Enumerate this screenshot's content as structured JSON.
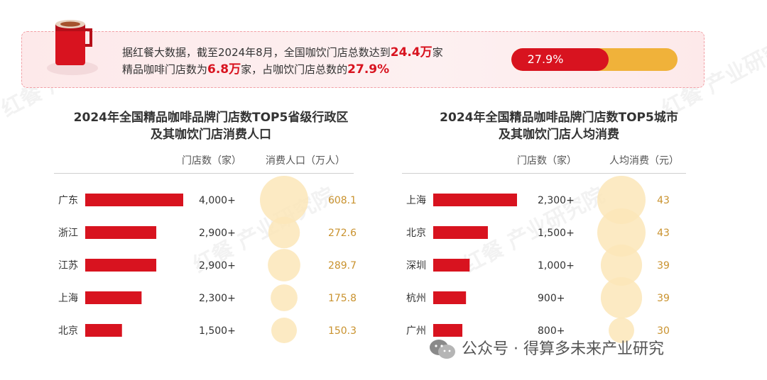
{
  "banner": {
    "line1_pre": "据红餐大数据，截至2024年8月，全国咖饮门店总数达到",
    "line1_hl": "24.4万",
    "line1_post": "家",
    "line2_pre": "精品咖啡门店数为",
    "line2_hl1": "6.8万",
    "line2_mid": "家，占咖饮门店总数的",
    "line2_hl2": "27.9%",
    "progress_label": "27.9%",
    "progress_value": 0.279
  },
  "colors": {
    "bar": "#d8131f",
    "bubble": "#fbe6b8",
    "bubble_text": "#c9922e",
    "track": "#f0b23a"
  },
  "watermark": "红餐 产业研究院",
  "footer": "公众号 · 得算多未来产业研究",
  "chart_data": [
    {
      "type": "bar",
      "title_line1": "2024年全国精品咖啡品牌门店数TOP5省级行政区",
      "title_line2": "及其咖饮门店消费人口",
      "col1_header": "门店数（家）",
      "col2_header": "消费人口（万人）",
      "categories": [
        "广东",
        "浙江",
        "江苏",
        "上海",
        "北京"
      ],
      "values": [
        4000,
        2900,
        2900,
        2300,
        1500
      ],
      "value_labels": [
        "4,000+",
        "2,900+",
        "2,900+",
        "2,300+",
        "1,500+"
      ],
      "bubble_values": [
        608.1,
        272.6,
        289.7,
        175.8,
        150.3
      ],
      "bubble_labels": [
        "608.1",
        "272.6",
        "289.7",
        "175.8",
        "150.3"
      ]
    },
    {
      "type": "bar",
      "title_line1": "2024年全国精品咖啡品牌门店数TOP5城市",
      "title_line2": "及其咖饮门店人均消费",
      "col1_header": "门店数（家）",
      "col2_header": "人均消费（元）",
      "categories": [
        "上海",
        "北京",
        "深圳",
        "杭州",
        "广州"
      ],
      "values": [
        2300,
        1500,
        1000,
        900,
        800
      ],
      "value_labels": [
        "2,300+",
        "1,500+",
        "1,000+",
        "900+",
        "800+"
      ],
      "bubble_values": [
        43,
        43,
        39,
        39,
        30
      ],
      "bubble_labels": [
        "43",
        "43",
        "39",
        "39",
        "30"
      ]
    }
  ]
}
